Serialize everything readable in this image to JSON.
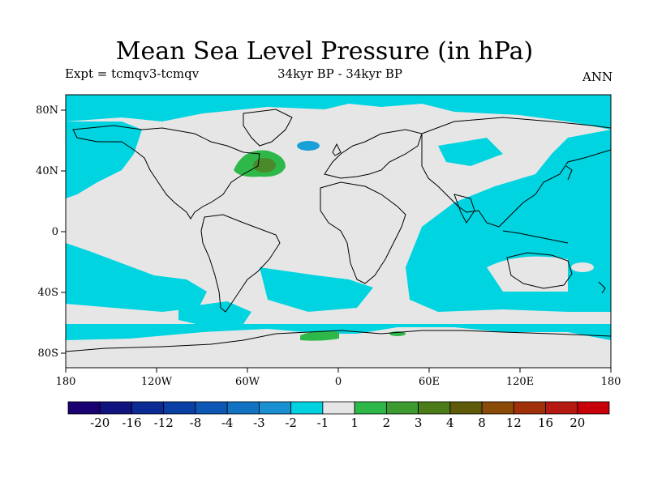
{
  "title": "Mean Sea Level Pressure (in hPa)",
  "subtitle_left": "Expt = tcmqv3-tcmqv",
  "subtitle_center": "34kyr BP - 34kyr BP",
  "subtitle_right": "ANN",
  "colors": {
    "ocean_neutral": "#e6e6e6",
    "cyan_neg": "#00d4e0",
    "medium_blue": "#1aa0d8",
    "green_pos": "#2eb84a",
    "olive_pos": "#4a8a2a",
    "coast": "#000000"
  },
  "map": {
    "lon_ticks": [
      "180",
      "120W",
      "60W",
      "0",
      "60E",
      "120E",
      "180"
    ],
    "lat_ticks": [
      "80N",
      "40N",
      "0",
      "40S",
      "80S"
    ]
  },
  "colorbar": {
    "labels": [
      "-20",
      "-16",
      "-12",
      "-8",
      "-4",
      "-3",
      "-2",
      "-1",
      "1",
      "2",
      "3",
      "4",
      "8",
      "12",
      "16",
      "20"
    ],
    "colors": [
      "#1a0070",
      "#10127e",
      "#0b2a93",
      "#0a3fa4",
      "#0d58b4",
      "#1273c2",
      "#1a90d2",
      "#00d2e0",
      "#e6e6e6",
      "#2eb84a",
      "#3d9a30",
      "#4c7b1a",
      "#5e5a0a",
      "#8a4a08",
      "#a0300a",
      "#b41a12",
      "#c8000a"
    ]
  }
}
